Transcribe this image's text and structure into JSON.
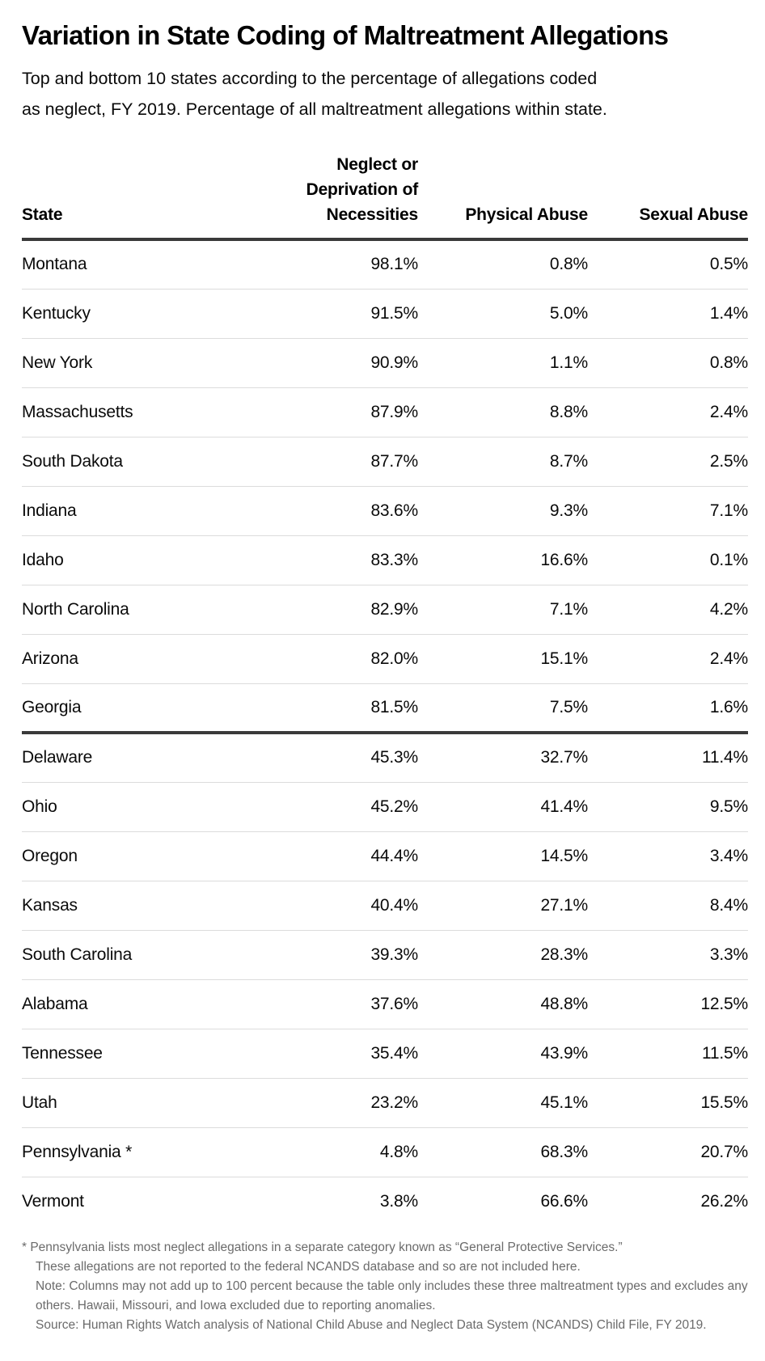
{
  "title": "Variation in State Coding of Maltreatment Allegations",
  "subtitle_lines": [
    "Top and bottom 10 states according to the percentage of allegations coded",
    "as neglect, FY 2019. Percentage of all maltreatment allegations within state."
  ],
  "table": {
    "headers": {
      "state": "State",
      "neglect_lines": [
        "Neglect or",
        "Deprivation of",
        "Necessities"
      ],
      "physical": "Physical Abuse",
      "sexual": "Sexual Abuse"
    }
  },
  "footnotes": {
    "asterisk_line": "* Pennsylvania lists most neglect allegations in a separate category known as “General Protective Services.”",
    "continuation_line": "These allegations are not reported to the federal NCANDS database and so are not included here.",
    "note_line": "Note: Columns may not add up to 100 percent because the table only includes these three maltreatment types and excludes any others. Hawaii, Missouri, and Iowa excluded due to reporting anomalies.",
    "source_line": "Source: Human Rights Watch analysis of National Child Abuse and Neglect Data System (NCANDS) Child File, FY 2019."
  },
  "colors": {
    "text": "#000000",
    "rule_dark": "#3a3a3a",
    "rule_light": "#dcdcdc",
    "footnote_gray": "#6b6b6b"
  },
  "chart_data": {
    "type": "table",
    "title": "Variation in State Coding of Maltreatment Allegations",
    "subtitle": "Top and bottom 10 states according to the percentage of allegations coded as neglect, FY 2019. Percentage of all maltreatment allegations within state.",
    "columns": [
      "State",
      "Neglect or Deprivation of Necessities",
      "Physical Abuse",
      "Sexual Abuse"
    ],
    "top_10": [
      {
        "state": "Montana",
        "neglect": "98.1%",
        "physical": "0.8%",
        "sexual": "0.5%"
      },
      {
        "state": "Kentucky",
        "neglect": "91.5%",
        "physical": "5.0%",
        "sexual": "1.4%"
      },
      {
        "state": "New York",
        "neglect": "90.9%",
        "physical": "1.1%",
        "sexual": "0.8%"
      },
      {
        "state": "Massachusetts",
        "neglect": "87.9%",
        "physical": "8.8%",
        "sexual": "2.4%"
      },
      {
        "state": "South Dakota",
        "neglect": "87.7%",
        "physical": "8.7%",
        "sexual": "2.5%"
      },
      {
        "state": "Indiana",
        "neglect": "83.6%",
        "physical": "9.3%",
        "sexual": "7.1%"
      },
      {
        "state": "Idaho",
        "neglect": "83.3%",
        "physical": "16.6%",
        "sexual": "0.1%"
      },
      {
        "state": "North Carolina",
        "neglect": "82.9%",
        "physical": "7.1%",
        "sexual": "4.2%"
      },
      {
        "state": "Arizona",
        "neglect": "82.0%",
        "physical": "15.1%",
        "sexual": "2.4%"
      },
      {
        "state": "Georgia",
        "neglect": "81.5%",
        "physical": "7.5%",
        "sexual": "1.6%"
      }
    ],
    "bottom_10": [
      {
        "state": "Delaware",
        "neglect": "45.3%",
        "physical": "32.7%",
        "sexual": "11.4%"
      },
      {
        "state": "Ohio",
        "neglect": "45.2%",
        "physical": "41.4%",
        "sexual": "9.5%"
      },
      {
        "state": "Oregon",
        "neglect": "44.4%",
        "physical": "14.5%",
        "sexual": "3.4%"
      },
      {
        "state": "Kansas",
        "neglect": "40.4%",
        "physical": "27.1%",
        "sexual": "8.4%"
      },
      {
        "state": "South Carolina",
        "neglect": "39.3%",
        "physical": "28.3%",
        "sexual": "3.3%"
      },
      {
        "state": "Alabama",
        "neglect": "37.6%",
        "physical": "48.8%",
        "sexual": "12.5%"
      },
      {
        "state": "Tennessee",
        "neglect": "35.4%",
        "physical": "43.9%",
        "sexual": "11.5%"
      },
      {
        "state": "Utah",
        "neglect": "23.2%",
        "physical": "45.1%",
        "sexual": "15.5%"
      },
      {
        "state": "Pennsylvania *",
        "neglect": "4.8%",
        "physical": "68.3%",
        "sexual": "20.7%"
      },
      {
        "state": "Vermont",
        "neglect": "3.8%",
        "physical": "66.6%",
        "sexual": "26.2%"
      }
    ]
  }
}
